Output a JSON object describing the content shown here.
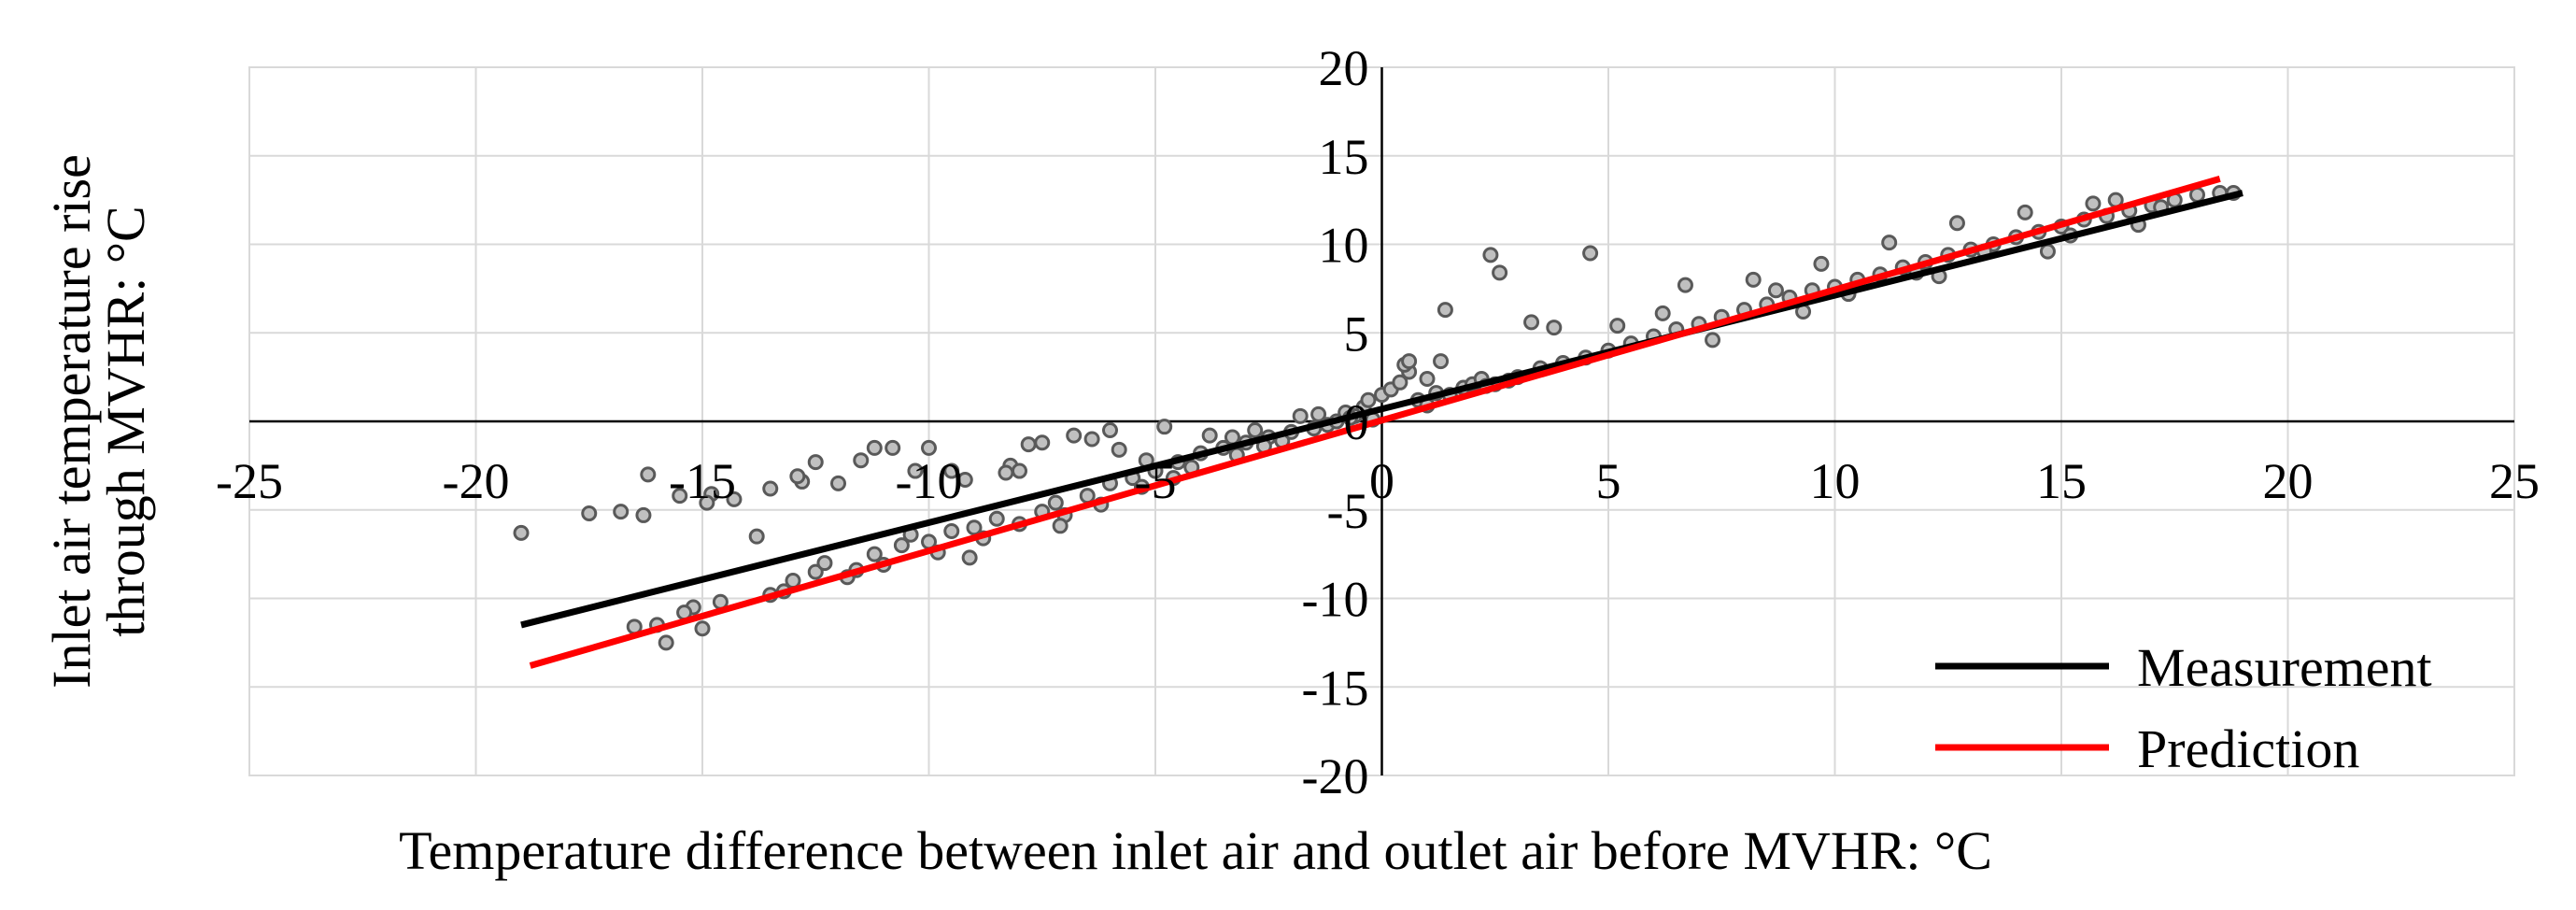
{
  "chart_data": {
    "type": "scatter",
    "title": "",
    "xlabel": "Temperature difference between inlet air and outlet air before MVHR: °C",
    "ylabel_lines": [
      "Inlet air temperature rise",
      "through MVHR: °C"
    ],
    "xlim": [
      -25,
      25
    ],
    "ylim": [
      -20,
      20
    ],
    "x_ticks": [
      -25,
      -20,
      -15,
      -10,
      -5,
      0,
      5,
      10,
      15,
      20,
      25
    ],
    "y_ticks": [
      -20,
      -15,
      -10,
      -5,
      0,
      5,
      10,
      15,
      20
    ],
    "x_tick_labels": [
      "-25",
      "-20",
      "-15",
      "-10",
      "-5",
      "0",
      "5",
      "10",
      "15",
      "20",
      "25"
    ],
    "y_tick_labels": [
      "-20",
      "-15",
      "-10",
      "-5",
      "0",
      "5",
      "10",
      "15",
      "20"
    ],
    "grid": true,
    "legend_position": "bottom-right",
    "colors": {
      "measurement": "#000000",
      "prediction": "#ff0000",
      "marker_fill": "#c0c0c0",
      "marker_edge": "#595959",
      "grid": "#d9d9d9"
    },
    "lines": [
      {
        "name": "Measurement",
        "x": [
          -19,
          19
        ],
        "y": [
          -11.5,
          12.9
        ]
      },
      {
        "name": "Prediction",
        "x": [
          -18.8,
          18.5
        ],
        "y": [
          -13.8,
          13.7
        ]
      }
    ],
    "scatter": {
      "x": [
        -19,
        -17.5,
        -16.8,
        -16.5,
        -16.3,
        -16,
        -15.8,
        -15.5,
        -15.2,
        -15,
        -14.8,
        -14.6,
        -14.3,
        -13.8,
        -13.5,
        -13.2,
        -13,
        -12.8,
        -12.5,
        -12.3,
        -12,
        -11.8,
        -11.5,
        -11.2,
        -11,
        -10.8,
        -10.6,
        -10.3,
        -10,
        -9.8,
        -9.5,
        -9.2,
        -9,
        -8.8,
        -8.5,
        -8.2,
        -8,
        -7.8,
        -7.5,
        -7.2,
        -7,
        -6.8,
        -6.5,
        -6.2,
        -6,
        -5.8,
        -5.5,
        -5.2,
        -5,
        -4.8,
        -4.5,
        -4.2,
        -4,
        -3.8,
        -3.5,
        -3.2,
        -3,
        -2.8,
        -2.5,
        -2.2,
        -2,
        -1.8,
        -1.5,
        -1.2,
        -1,
        -0.8,
        -0.6,
        -0.4,
        -0.3,
        -0.2,
        0,
        0.2,
        0.4,
        0.6,
        0.8,
        1,
        1.2,
        1.5,
        1.8,
        2,
        2.2,
        2.5,
        2.8,
        3,
        3.5,
        4,
        4.5,
        5,
        5.5,
        6,
        6.5,
        7,
        7.5,
        8,
        8.5,
        9,
        9.5,
        10,
        10.5,
        11,
        11.5,
        12,
        12.5,
        13,
        13.5,
        14,
        14.5,
        15,
        15.5,
        16,
        16.5,
        17,
        17.5,
        18,
        18.5,
        18.8,
        -16.2,
        -15.4,
        -14.9,
        -13.5,
        -12.9,
        -11.6,
        -10.4,
        -9.1,
        -8.3,
        -7.1,
        -6.4,
        -5.3,
        -4.6,
        -3.3,
        -2.6,
        -1.4,
        -0.7,
        0.5,
        1.3,
        2.3,
        2.6,
        3.3,
        3.8,
        4.6,
        0.6,
        1,
        1.4,
        2.4,
        6.7,
        8.2,
        9.7,
        11.2,
        12.7,
        14.2,
        15.7,
        17.2,
        5.2,
        6.2,
        7.3,
        8.7,
        9.3,
        10.3,
        11.8,
        12.3,
        13.3,
        14.7,
        15.2,
        16.2,
        16.7,
        -10,
        -11.2,
        -12.5,
        -9.5,
        -8,
        -7.5,
        -6
      ],
      "y": [
        -6.3,
        -5.2,
        -5.1,
        -11.6,
        -5.3,
        -11.5,
        -12.5,
        -4.2,
        -10.5,
        -11.7,
        -4.1,
        -10.2,
        -4.4,
        -6.5,
        -3.8,
        -9.6,
        -9,
        -3.4,
        -8.5,
        -8,
        -3.5,
        -8.8,
        -2.2,
        -7.5,
        -8.1,
        -1.5,
        -7,
        -2.8,
        -6.8,
        -7.4,
        -6.2,
        -3.3,
        -6,
        -6.6,
        -5.5,
        -2.5,
        -5.8,
        -1.3,
        -5.1,
        -4.6,
        -5.3,
        -0.8,
        -4.2,
        -4.7,
        -3.5,
        -1.6,
        -3.2,
        -2.2,
        -2.8,
        -0.3,
        -2.3,
        -2.6,
        -1.8,
        -0.8,
        -1.5,
        -1.9,
        -1.2,
        -0.5,
        -0.9,
        -1.1,
        -0.6,
        0.3,
        -0.4,
        -0.2,
        0,
        0.5,
        0.3,
        0.8,
        1.2,
        0.1,
        1.5,
        1.8,
        2.2,
        2.8,
        1.2,
        0.9,
        1.6,
        1.5,
        1.9,
        2.1,
        2.4,
        2.1,
        2.3,
        2.5,
        3,
        3.3,
        3.6,
        4,
        4.4,
        4.8,
        5.2,
        5.5,
        5.9,
        6.3,
        6.6,
        7,
        7.4,
        7.6,
        8,
        8.3,
        8.7,
        9,
        9.4,
        9.7,
        10,
        10.4,
        10.7,
        11,
        11.4,
        11.6,
        11.9,
        12.2,
        12.5,
        12.8,
        12.9,
        12.9,
        -3,
        -10.8,
        -4.6,
        -9.8,
        -3.1,
        -8.4,
        -6.4,
        -7.7,
        -2.9,
        -5.9,
        -1,
        -3.7,
        -3.2,
        -0.9,
        -1.4,
        0.4,
        0.2,
        3.2,
        3.4,
        2,
        8.4,
        5.6,
        5.3,
        9.5,
        3.4,
        2.4,
        6.3,
        9.4,
        7.7,
        8,
        8.9,
        10.1,
        11.2,
        11.8,
        12.3,
        12.1,
        5.4,
        6.1,
        4.6,
        7.4,
        6.2,
        7.2,
        8.4,
        8.2,
        9.6,
        9.6,
        10.5,
        12.5,
        11.1,
        -1.5,
        -1.5,
        -2.3,
        -2.8,
        -2.8,
        -1.2,
        -0.5
      ]
    }
  }
}
